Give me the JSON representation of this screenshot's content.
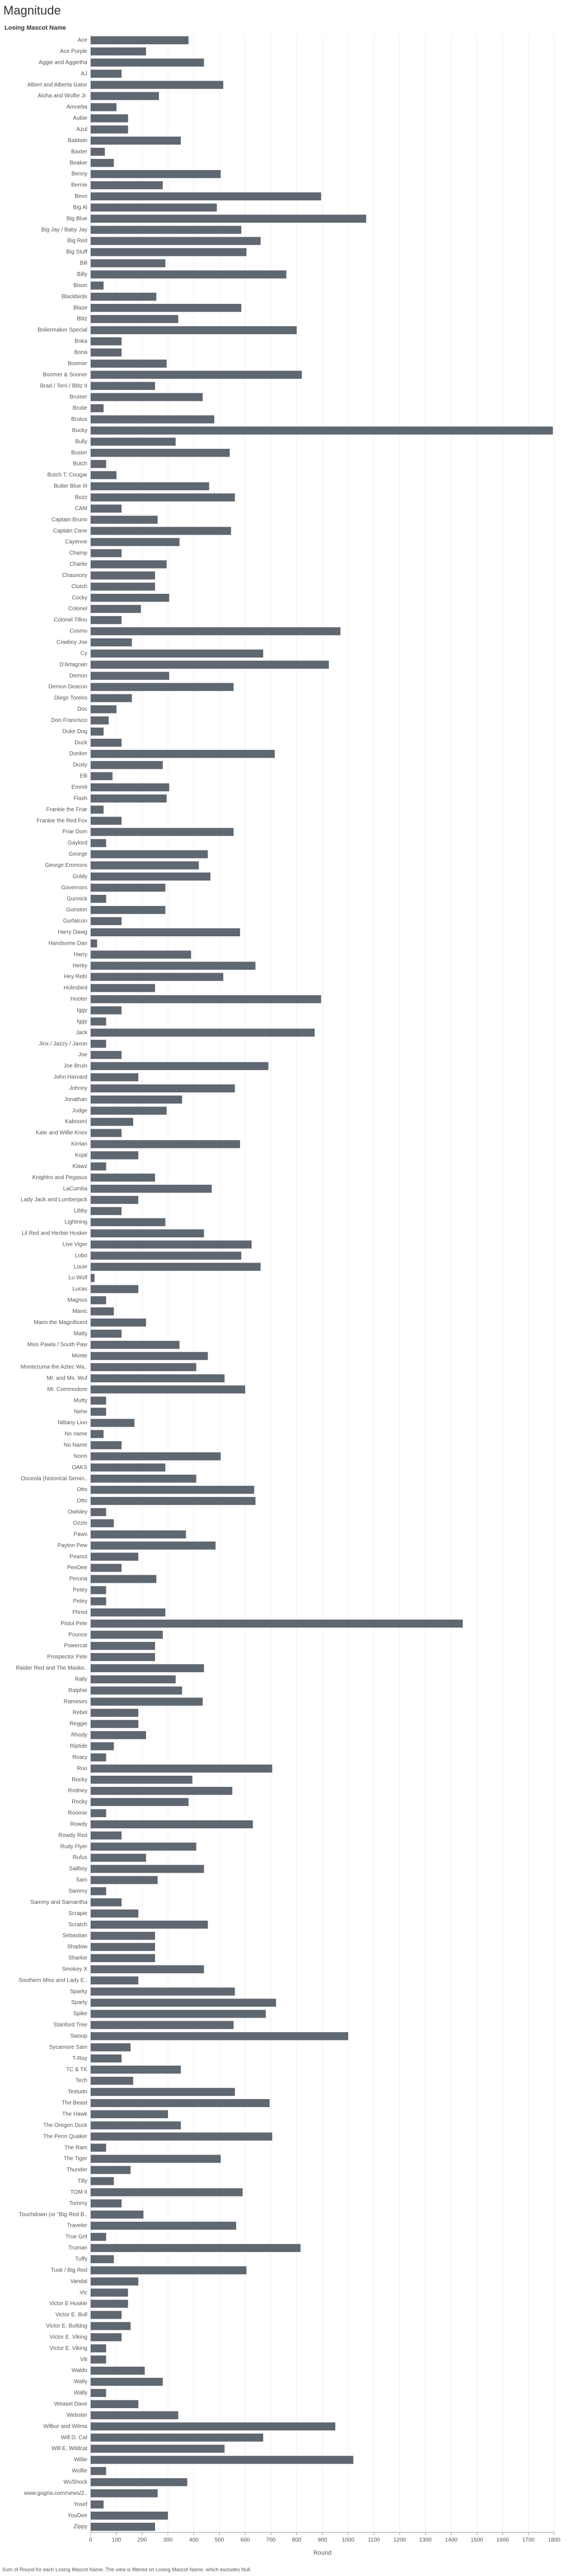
{
  "chart_data": {
    "type": "bar",
    "orientation": "horizontal",
    "title": "Magnitude",
    "category_header": "Losing Mascot Name",
    "x_label": "Round",
    "footnote": "Sum of Round for each Losing Mascot Name. The view is filtered on Losing Mascot Name, which excludes Null.",
    "color": "#5f6771",
    "grid": true,
    "xlim": [
      0,
      1800
    ],
    "xticks": [
      0,
      100,
      200,
      300,
      400,
      500,
      600,
      700,
      800,
      900,
      1000,
      1100,
      1200,
      1300,
      1400,
      1500,
      1600,
      1700,
      1800
    ],
    "categories": [
      "Ace",
      "Ace Purple",
      "Aggie and Aggietha",
      "AJ",
      "Albert and Alberta Gator",
      "Aloha and Wolfie Jr.",
      "Amoeba",
      "Aubie",
      "Azul",
      "Baldwin",
      "Baxter",
      "Beaker",
      "Benny",
      "Bernie",
      "Bevo",
      "Big Al",
      "Big Blue",
      "Big Jay / Baby Jay",
      "Big Red",
      "Big Stuff",
      "Bill",
      "Billy",
      "Bison",
      "Blackbirds",
      "Blaze",
      "Blitz",
      "Boilermaker Special",
      "Boka",
      "Bona",
      "Boomer",
      "Boomer & Sooner",
      "Brad / Terri / Blitz II",
      "Bruiser",
      "Brutie",
      "Brutus",
      "Bucky",
      "Bully",
      "Buster",
      "Butch",
      "Butch T. Cougar",
      "Butler Blue III",
      "Buzz",
      "CAM",
      "Captain Bruno",
      "Captain Cane",
      "Cayenne",
      "Champ",
      "Charlie",
      "Chauncey",
      "Clutch",
      "Cocky",
      "Colonel",
      "Colonel Tillou",
      "Cosmo",
      "Cowboy Joe",
      "Cy",
      "D'Artagnan",
      "Demon",
      "Demon Deacon",
      "Diego Toreiro",
      "Doc",
      "Don Francisco",
      "Duke Dog",
      "Duck",
      "Dunker",
      "Dusty",
      "Elli",
      "Emmit",
      "Flash",
      "Frankie the Friar",
      "Frankie the Red Fox",
      "Friar Dom",
      "Gaylord",
      "George",
      "George Emmons",
      "Goldy",
      "Governors",
      "Gunnick",
      "Gunston",
      "Gurfalcon",
      "Harry Dawg",
      "Handsome Dan",
      "Harry",
      "Herky",
      "Hey Reb!",
      "Holesbird",
      "Hooter",
      "Iggy",
      "Iggy",
      "Jack",
      "Jinx / Jazzy / Jaxon",
      "Joe",
      "Joe Bruin",
      "John Harvard",
      "Johnny",
      "Jonathan",
      "Judge",
      "Kaboom!",
      "Kate and Willie Knox",
      "Kirrian",
      "Kojal",
      "Klawz",
      "Knightro and Pegasus",
      "LaCumba",
      "Lady Jack and Lumberjack",
      "Libby",
      "Lightning",
      "Lil Red and Herbie Husker",
      "Live Viger",
      "Lobo",
      "Louie",
      "Lu Wolf",
      "Lucas",
      "Magnus",
      "Manic",
      "Mario the Magnificent",
      "Matty",
      "Miss Pawla / South Paw",
      "Monte",
      "Montezuma the Aztec Wa..",
      "Mr. and Ms. Wuf",
      "Mr. Commodore",
      "Mutty",
      "Nehe",
      "Nittany Lion",
      "No name",
      "No Name",
      "Norm",
      "OAKS",
      "Osceola (historical Semin..",
      "Otto",
      "Otto",
      "Owlsley",
      "Ozzie",
      "Paws",
      "Payton Pew",
      "Peanut",
      "PeeDee",
      "Peruna",
      "Petey",
      "Petey",
      "Phred",
      "Pistol Pete",
      "Pounce",
      "Powercat",
      "Prospector Pete",
      "Raider Red and The Maske..",
      "Rally",
      "Ralphie",
      "Rameses",
      "Rebel",
      "Reggie",
      "Rhody",
      "Riptide",
      "Roary",
      "Roo",
      "Rocky",
      "Rodney",
      "Rocky",
      "Roomie",
      "Rowdy",
      "Rowdy Red",
      "Rudy Flyer",
      "Rufus",
      "Sailboy",
      "Sam",
      "Sammy",
      "Sammy and Samantha",
      "Scrapie",
      "Scratch",
      "Sebastian",
      "Shadow",
      "Sharkie",
      "Smokey X",
      "Southern Miss and Lady E..",
      "Sparky",
      "Sparty",
      "Spike",
      "Stanford Tree",
      "Swoop",
      "Sycamore Sam",
      "T-Roy",
      "TC & TK",
      "Tech",
      "Testudo",
      "The Beast",
      "The Hawk",
      "The Oregon Duck",
      "The Penn Quaker",
      "The Ram",
      "The Tiger",
      "Thunder",
      "Tilly",
      "TOM II",
      "Tommy",
      "Touchdown (or \"Big Red B..",
      "Traveler",
      "True Grit",
      "Truman",
      "Tuffy",
      "Tusk / Big Red",
      "Vandal",
      "Vic",
      "Victor E Huskie",
      "Victor E. Bull",
      "Victor E. Bulldog",
      "Victor E. Viking",
      "Victor E. Viking",
      "Vili",
      "Waldo",
      "Wally",
      "Wally",
      "Weasel Dave",
      "Webster",
      "Wilbur and Wilma",
      "Will D. Cat",
      "Will E. Wildcat",
      "Willie",
      "Wolfie",
      "WuShock",
      "www.gogria.com/news/2..",
      "Yosef",
      "YouDee",
      "Zippy"
    ],
    "values": [
      380,
      215,
      440,
      120,
      515,
      265,
      100,
      145,
      145,
      350,
      55,
      90,
      505,
      280,
      895,
      490,
      1070,
      585,
      660,
      605,
      290,
      760,
      50,
      255,
      585,
      340,
      800,
      120,
      120,
      295,
      820,
      250,
      435,
      50,
      480,
      1795,
      330,
      540,
      60,
      100,
      460,
      560,
      120,
      260,
      545,
      345,
      120,
      295,
      250,
      250,
      305,
      195,
      120,
      970,
      160,
      670,
      925,
      305,
      555,
      160,
      100,
      70,
      50,
      120,
      715,
      280,
      85,
      305,
      295,
      50,
      120,
      555,
      60,
      455,
      420,
      465,
      290,
      60,
      290,
      120,
      580,
      25,
      390,
      640,
      515,
      250,
      895,
      120,
      60,
      870,
      60,
      120,
      690,
      185,
      560,
      355,
      295,
      165,
      120,
      580,
      185,
      60,
      250,
      470,
      185,
      120,
      290,
      440,
      625,
      585,
      660,
      15,
      185,
      60,
      90,
      215,
      120,
      345,
      455,
      410,
      520,
      600,
      60,
      60,
      170,
      50,
      120,
      505,
      290,
      410,
      635,
      640,
      60,
      90,
      370,
      485,
      185,
      120,
      255,
      60,
      60,
      290,
      1445,
      280,
      250,
      250,
      440,
      330,
      355,
      435,
      185,
      185,
      215,
      90,
      60,
      705,
      395,
      550,
      380,
      60,
      630,
      120,
      410,
      215,
      440,
      260,
      60,
      120,
      185,
      455,
      250,
      250,
      250,
      440,
      185,
      560,
      720,
      680,
      555,
      1000,
      155,
      120,
      350,
      165,
      560,
      695,
      300,
      350,
      705,
      60,
      505,
      155,
      90,
      590,
      120,
      205,
      565,
      60,
      815,
      90,
      605,
      185,
      145,
      145,
      120,
      155,
      120,
      60,
      60,
      210,
      280,
      60,
      185,
      340,
      950,
      670,
      520,
      1020,
      60,
      375,
      260,
      50,
      300,
      250
    ]
  }
}
